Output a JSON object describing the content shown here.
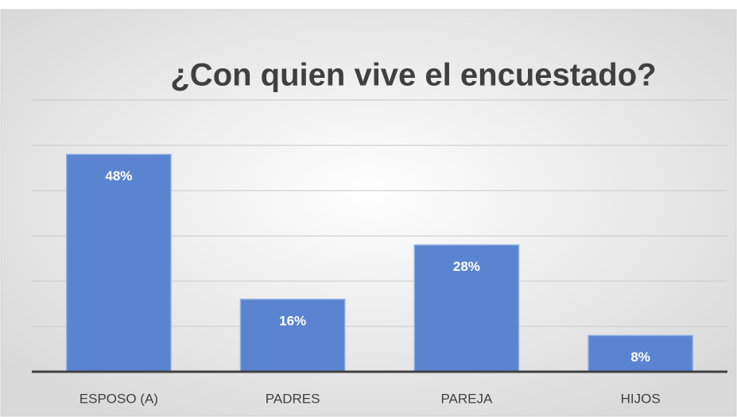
{
  "chart_data": {
    "type": "bar",
    "title": "¿Con quien vive el encuestado?",
    "categories": [
      "ESPOSO (A)",
      "PADRES",
      "PAREJA",
      "HIJOS"
    ],
    "values": [
      48,
      16,
      28,
      8
    ],
    "value_labels": [
      "48%",
      "16%",
      "28%",
      "8%"
    ],
    "color": "#5b84d0",
    "ylim": [
      0,
      60
    ],
    "yticks": [
      0,
      10,
      20,
      30,
      40,
      50,
      60
    ],
    "grid": true
  }
}
